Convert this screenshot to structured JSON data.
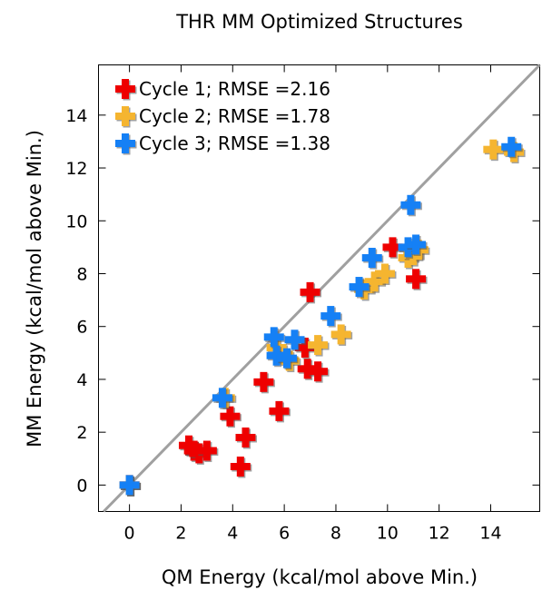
{
  "chart_data": {
    "type": "scatter",
    "title": "THR MM Optimized Structures",
    "xlabel": "QM Energy (kcal/mol above Min.)",
    "ylabel": "MM Energy (kcal/mol above Min.)",
    "xlim": [
      -1.2,
      15.9
    ],
    "ylim": [
      -1.0,
      15.9
    ],
    "xticks": [
      0,
      2,
      4,
      6,
      8,
      10,
      12,
      14
    ],
    "yticks": [
      0,
      2,
      4,
      6,
      8,
      10,
      12,
      14
    ],
    "grid": false,
    "legend_position": "top-left",
    "reference_line": {
      "label": "",
      "slope": 1,
      "intercept": 0,
      "color": "#a0a0a0"
    },
    "series": [
      {
        "name": "Cycle 1; RMSE =2.16",
        "color": "#ee0000",
        "points": [
          [
            0.0,
            0.0
          ],
          [
            2.3,
            1.5
          ],
          [
            2.5,
            1.3
          ],
          [
            2.7,
            1.2
          ],
          [
            3.0,
            1.3
          ],
          [
            3.9,
            2.6
          ],
          [
            4.3,
            0.7
          ],
          [
            4.5,
            1.8
          ],
          [
            5.2,
            3.9
          ],
          [
            5.8,
            2.8
          ],
          [
            6.8,
            5.2
          ],
          [
            6.9,
            4.4
          ],
          [
            7.0,
            7.3
          ],
          [
            7.3,
            4.3
          ],
          [
            10.2,
            9.0
          ],
          [
            11.1,
            7.8
          ]
        ]
      },
      {
        "name": "Cycle 2; RMSE =1.78",
        "color": "#f5b530",
        "points": [
          [
            0.0,
            0.0
          ],
          [
            3.7,
            3.3
          ],
          [
            5.7,
            5.2
          ],
          [
            6.2,
            4.7
          ],
          [
            7.3,
            5.3
          ],
          [
            8.2,
            5.7
          ],
          [
            9.1,
            7.4
          ],
          [
            9.5,
            7.7
          ],
          [
            9.9,
            8.0
          ],
          [
            10.8,
            8.6
          ],
          [
            11.0,
            8.7
          ],
          [
            11.2,
            8.9
          ],
          [
            14.1,
            12.7
          ],
          [
            14.9,
            12.6
          ]
        ]
      },
      {
        "name": "Cycle 3; RMSE =1.38",
        "color": "#1580f5",
        "points": [
          [
            0.0,
            0.0
          ],
          [
            3.6,
            3.3
          ],
          [
            5.6,
            5.6
          ],
          [
            5.7,
            4.9
          ],
          [
            6.1,
            4.8
          ],
          [
            6.4,
            5.5
          ],
          [
            7.8,
            6.4
          ],
          [
            8.9,
            7.5
          ],
          [
            9.4,
            8.6
          ],
          [
            10.8,
            9.0
          ],
          [
            10.9,
            10.6
          ],
          [
            11.1,
            9.1
          ],
          [
            14.8,
            12.8
          ]
        ]
      }
    ]
  }
}
